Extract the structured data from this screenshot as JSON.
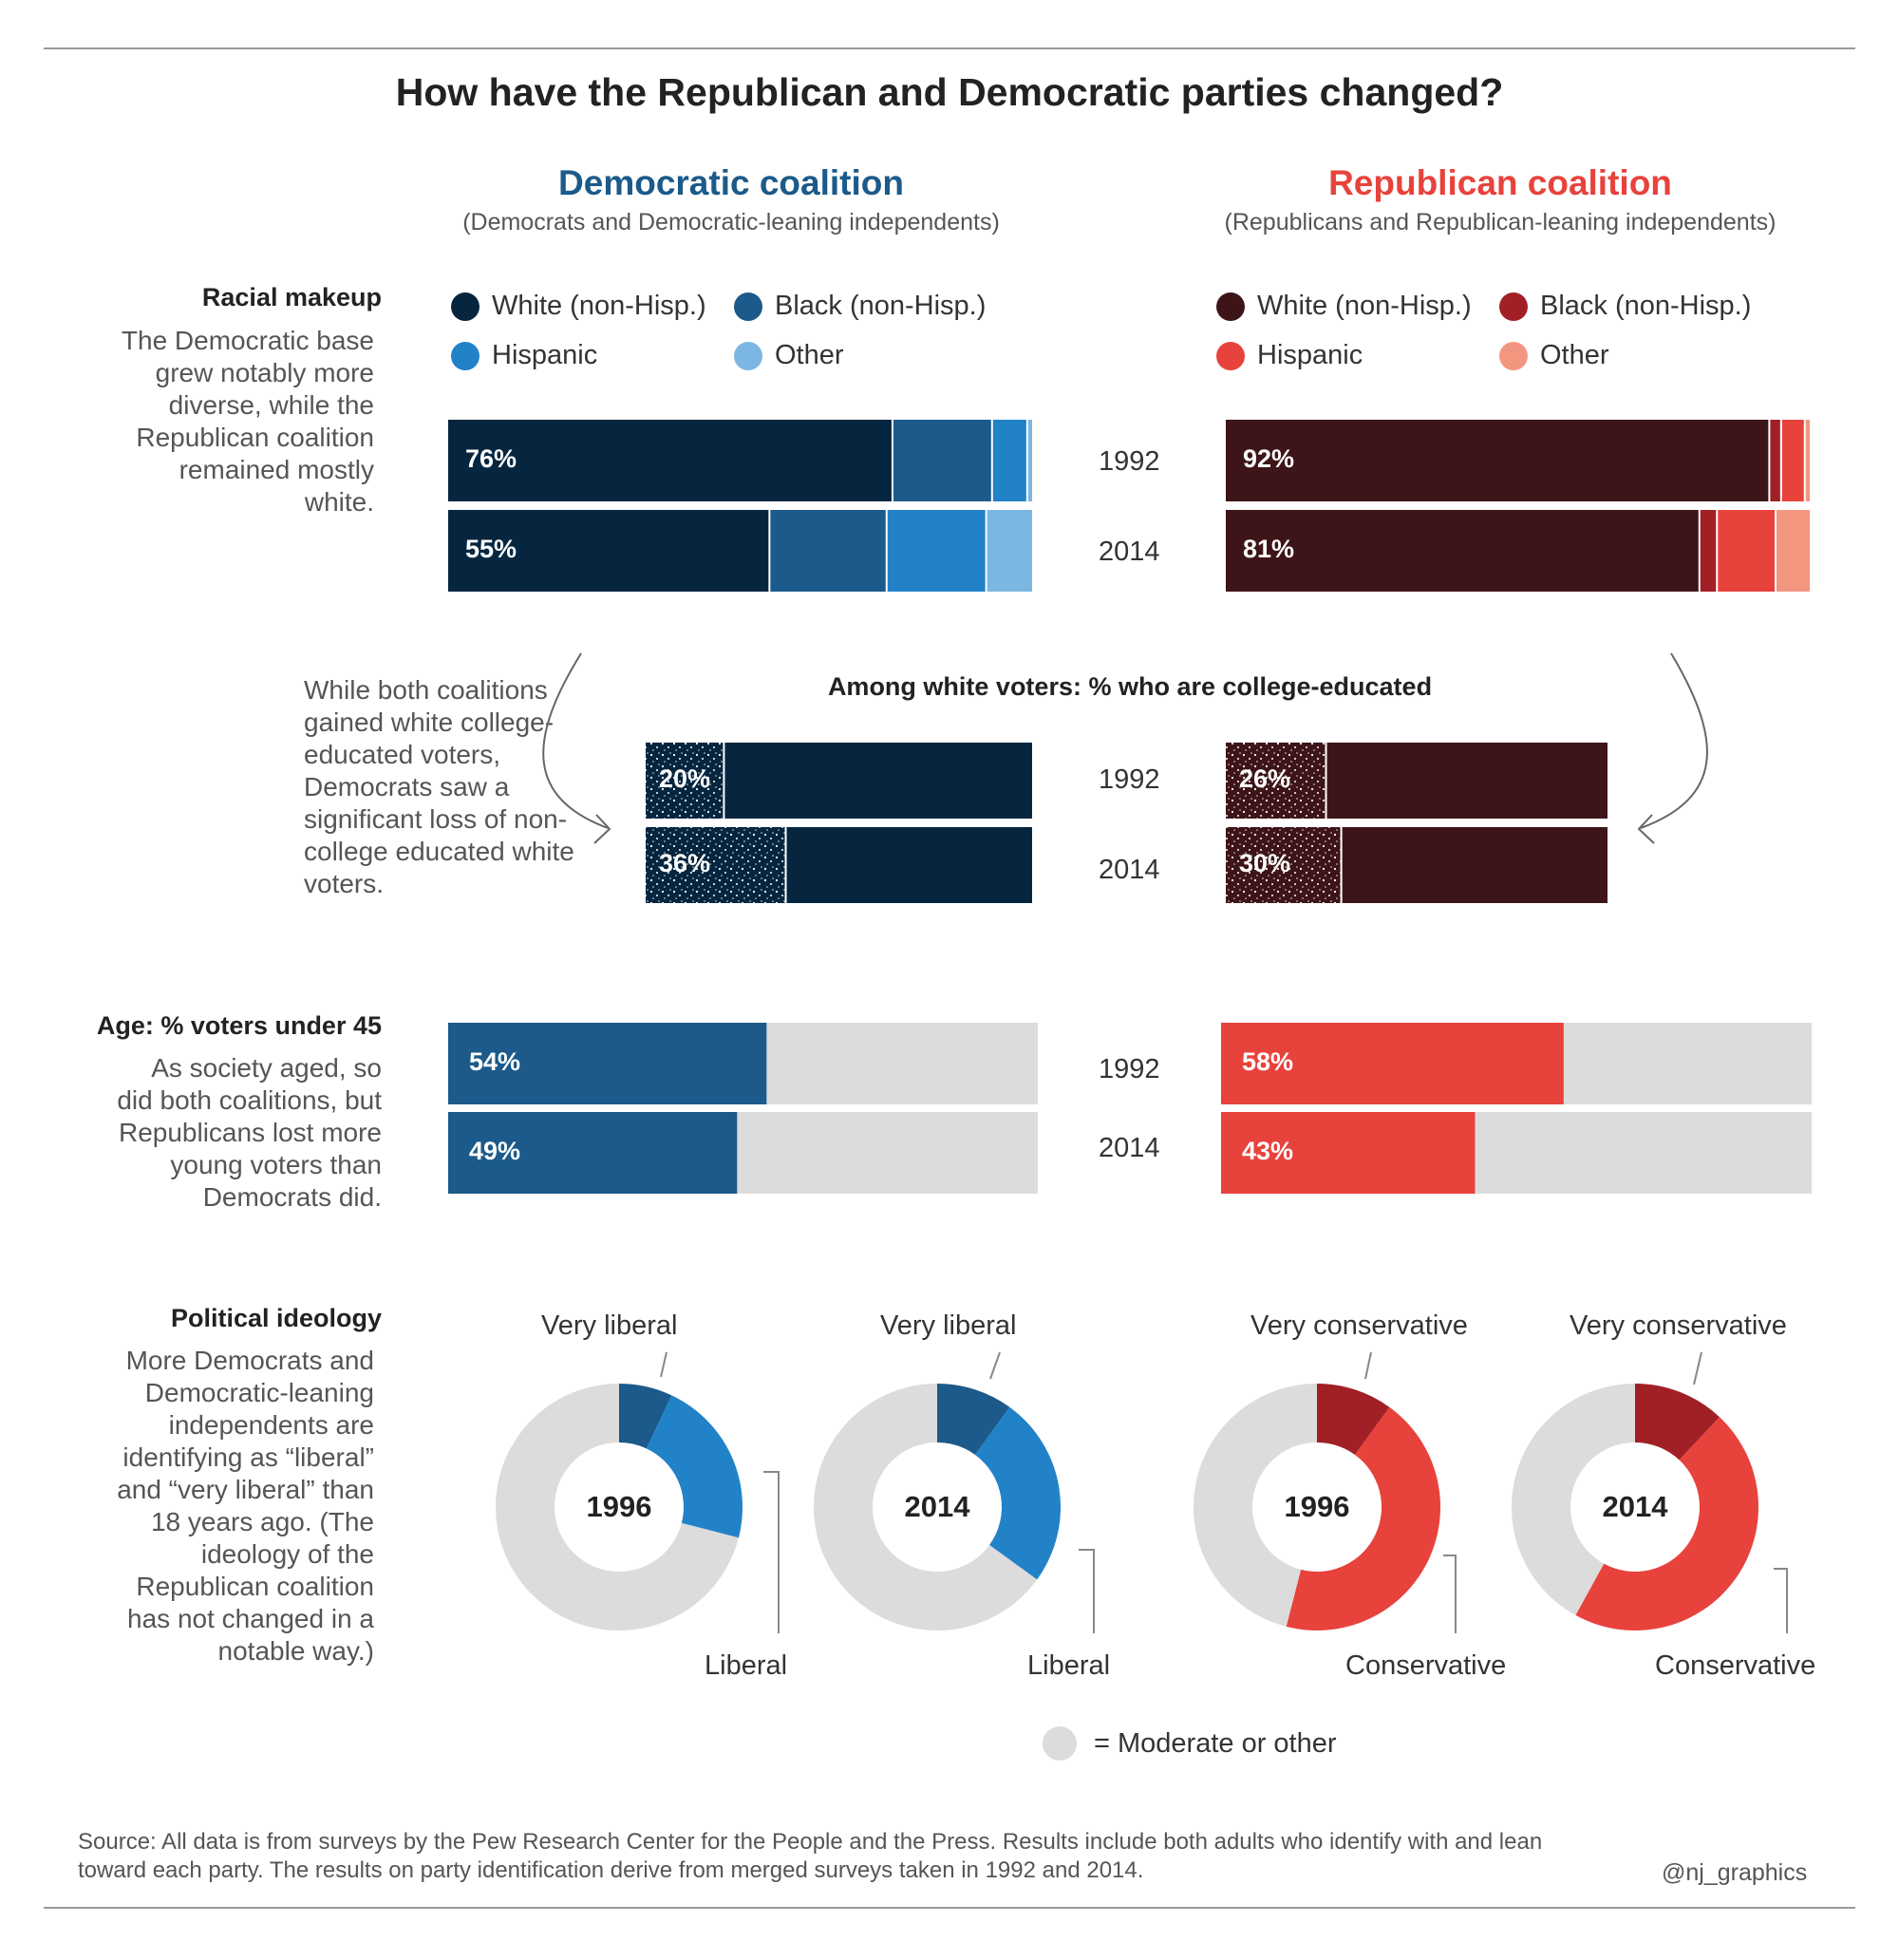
{
  "title": "How have the Republican and Democratic parties changed?",
  "dem": {
    "title": "Democratic coalition",
    "subtitle": "(Democrats and Democratic-leaning independents)",
    "color": "#1b5a8a"
  },
  "rep": {
    "title": "Republican coalition",
    "subtitle": "(Republicans and Republican-leaning independents)",
    "color": "#e8423c"
  },
  "sections": {
    "race": {
      "heading": "Racial makeup",
      "desc": "The Democratic base grew notably more diverse, while the Republican coalition remained mostly white."
    },
    "age": {
      "heading": "Age: % voters under 45",
      "desc": "As society aged, so did both coalitions, but Republicans lost more young voters than Democrats did."
    },
    "ideology": {
      "heading": "Political ideology",
      "desc": "More Democrats and Democratic-leaning independents are identifying as “liberal” and “very liberal” than 18 years ago. (The ideology of the Republican coalition has not changed in a notable way.)"
    }
  },
  "legend": {
    "dem": [
      {
        "label": "White (non-Hisp.)",
        "color": "#062640"
      },
      {
        "label": "Black (non-Hisp.)",
        "color": "#1b5a8a"
      },
      {
        "label": "Hispanic",
        "color": "#2282c8"
      },
      {
        "label": "Other",
        "color": "#7cb6e2"
      }
    ],
    "rep": [
      {
        "label": "White (non-Hisp.)",
        "color": "#3d1518"
      },
      {
        "label": "Black (non-Hisp.)",
        "color": "#a02026"
      },
      {
        "label": "Hispanic",
        "color": "#e8423c"
      },
      {
        "label": "Other",
        "color": "#f39680"
      }
    ]
  },
  "years": {
    "y1992": "1992",
    "y2014": "2014"
  },
  "edu_title": "Among white voters: % who are college-educated",
  "edu_note": "While both coalitions gained white college-educated voters, Democrats saw a significant loss of non-college educated white voters.",
  "moderate_legend": "= Moderate or other",
  "source": "Source: All data is from surveys by the Pew Research Center for the People and the Press. Results include both adults who identify with and lean toward each party. The results on party identification derive from merged surveys taken in 1992 and 2014.",
  "handle": "@nj_graphics",
  "chart_data": [
    {
      "id": "race-dem",
      "type": "bar",
      "stacked": true,
      "categories": [
        "1992",
        "2014"
      ],
      "series": [
        {
          "name": "White (non-Hisp.)",
          "values": [
            76,
            55
          ],
          "labels": [
            "76%",
            "55%"
          ]
        },
        {
          "name": "Black (non-Hisp.)",
          "values": [
            17,
            20
          ]
        },
        {
          "name": "Hispanic",
          "values": [
            6,
            17
          ]
        },
        {
          "name": "Other",
          "values": [
            1,
            8
          ]
        }
      ]
    },
    {
      "id": "race-rep",
      "type": "bar",
      "stacked": true,
      "categories": [
        "1992",
        "2014"
      ],
      "series": [
        {
          "name": "White (non-Hisp.)",
          "values": [
            92,
            81
          ],
          "labels": [
            "92%",
            "81%"
          ]
        },
        {
          "name": "Black (non-Hisp.)",
          "values": [
            2,
            3
          ]
        },
        {
          "name": "Hispanic",
          "values": [
            4,
            10
          ]
        },
        {
          "name": "Other",
          "values": [
            1,
            6
          ]
        }
      ]
    },
    {
      "id": "edu-dem",
      "type": "bar",
      "stacked": true,
      "categories": [
        "1992",
        "2014"
      ],
      "values": [
        20,
        36
      ],
      "labels": [
        "20%",
        "36%"
      ]
    },
    {
      "id": "edu-rep",
      "type": "bar",
      "stacked": true,
      "categories": [
        "1992",
        "2014"
      ],
      "values": [
        26,
        30
      ],
      "labels": [
        "26%",
        "30%"
      ]
    },
    {
      "id": "age-dem",
      "type": "bar",
      "categories": [
        "1992",
        "2014"
      ],
      "values": [
        54,
        49
      ],
      "labels": [
        "54%",
        "49%"
      ]
    },
    {
      "id": "age-rep",
      "type": "bar",
      "categories": [
        "1992",
        "2014"
      ],
      "values": [
        58,
        43
      ],
      "labels": [
        "58%",
        "43%"
      ]
    },
    {
      "id": "ideo-dem-1996",
      "type": "pie",
      "center_label": "1996",
      "slices": [
        {
          "name": "Very liberal",
          "value": 7
        },
        {
          "name": "Liberal",
          "value": 22
        },
        {
          "name": "Moderate or other",
          "value": 71
        }
      ]
    },
    {
      "id": "ideo-dem-2014",
      "type": "pie",
      "center_label": "2014",
      "slices": [
        {
          "name": "Very liberal",
          "value": 10
        },
        {
          "name": "Liberal",
          "value": 25
        },
        {
          "name": "Moderate or other",
          "value": 65
        }
      ]
    },
    {
      "id": "ideo-rep-1996",
      "type": "pie",
      "center_label": "1996",
      "slices": [
        {
          "name": "Very conservative",
          "value": 10
        },
        {
          "name": "Conservative",
          "value": 44
        },
        {
          "name": "Moderate or other",
          "value": 46
        }
      ]
    },
    {
      "id": "ideo-rep-2014",
      "type": "pie",
      "center_label": "2014",
      "slices": [
        {
          "name": "Very conservative",
          "value": 12
        },
        {
          "name": "Conservative",
          "value": 46
        },
        {
          "name": "Moderate or other",
          "value": 42
        }
      ]
    }
  ]
}
